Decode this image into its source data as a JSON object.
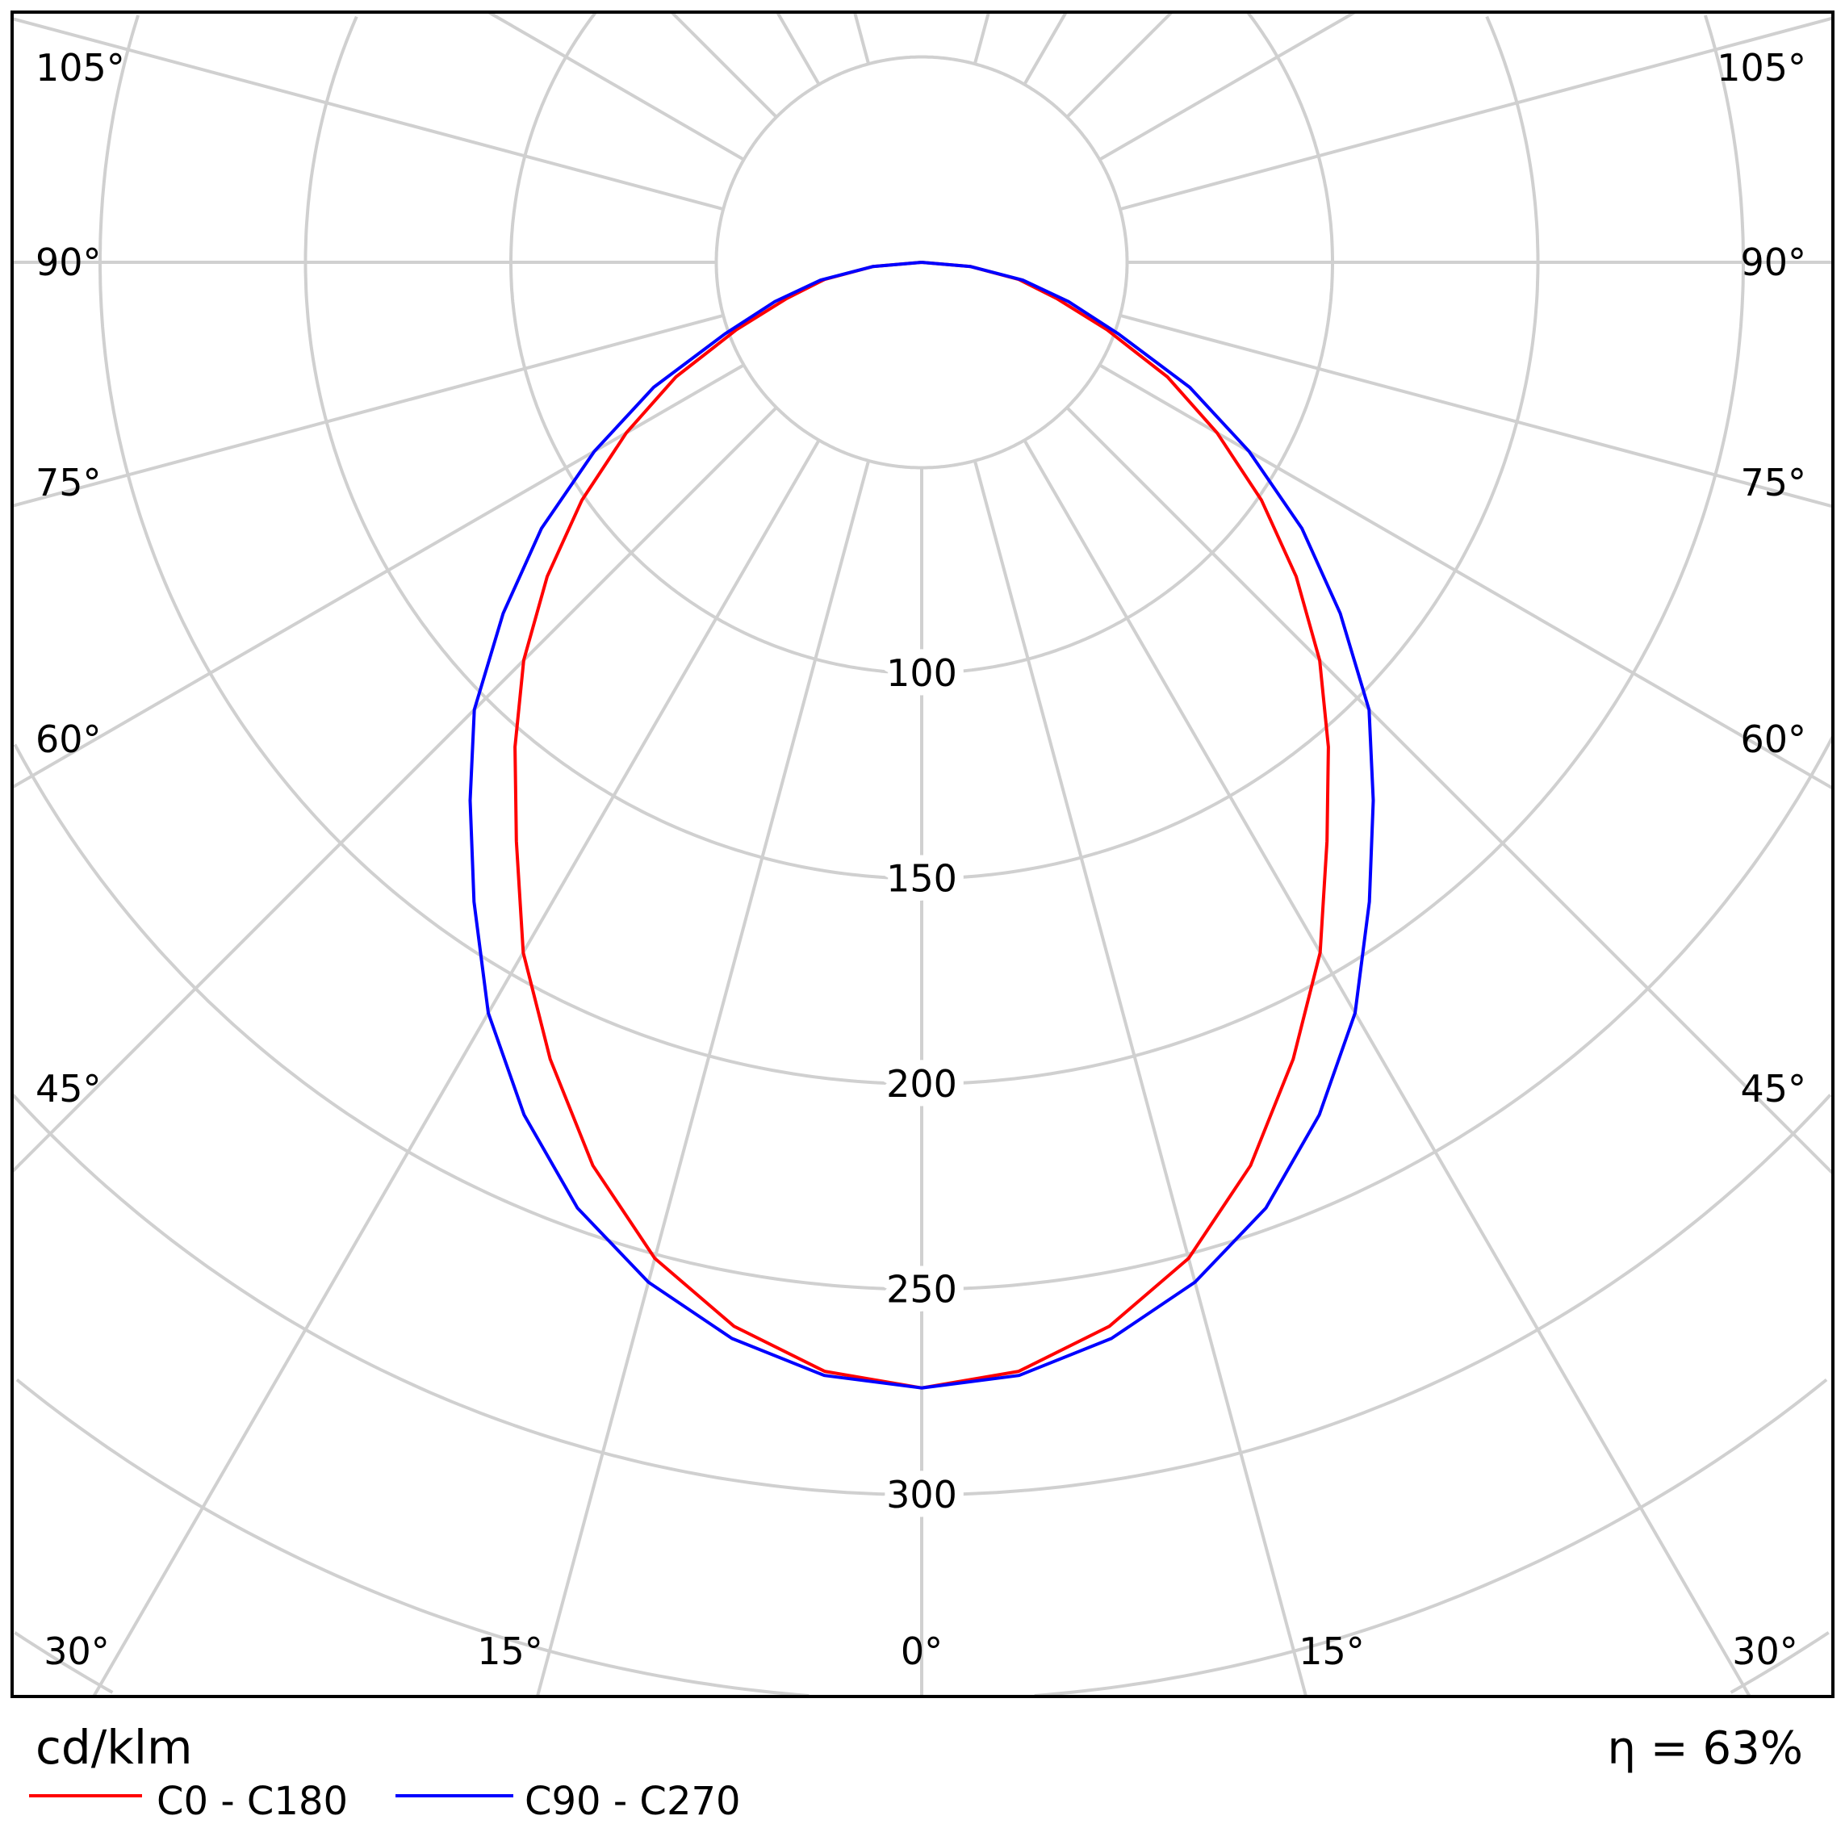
{
  "chart_data": {
    "type": "polar",
    "title": "",
    "unit": "cd/klm",
    "efficiency": "η = 63%",
    "radial_ticks": [
      100,
      150,
      200,
      250,
      300
    ],
    "radial_tick_labels": [
      "100",
      "150",
      "200",
      "250",
      "300"
    ],
    "grid_circles": [
      50,
      100,
      150,
      200,
      250,
      300,
      350,
      400,
      450
    ],
    "angle_labels": {
      "left": [
        "105°",
        "90°",
        "75°",
        "60°",
        "45°"
      ],
      "right": [
        "105°",
        "90°",
        "75°",
        "60°",
        "45°"
      ],
      "bottom": [
        "30°",
        "15°",
        "0°",
        "15°",
        "30°"
      ]
    },
    "angles": [
      0,
      5,
      10,
      15,
      20,
      25,
      30,
      35,
      40,
      45,
      50,
      55,
      60,
      65,
      70,
      75,
      80,
      85,
      90
    ],
    "series": [
      {
        "name": "C0 - C180",
        "color": "#ff0000",
        "values": [
          274,
          271,
          263,
          251,
          234,
          214,
          194,
          172,
          154,
          137,
          119,
          101,
          83,
          66,
          48,
          34,
          24,
          12,
          0
        ]
      },
      {
        "name": "C90 - C270",
        "color": "#0000ff",
        "values": [
          274,
          272,
          266,
          257,
          245,
          229,
          211,
          190,
          171,
          154,
          133,
          113,
          92,
          72,
          51,
          37,
          25,
          12,
          0
        ]
      }
    ],
    "grid": true,
    "legend_placement": "bottom-left"
  }
}
